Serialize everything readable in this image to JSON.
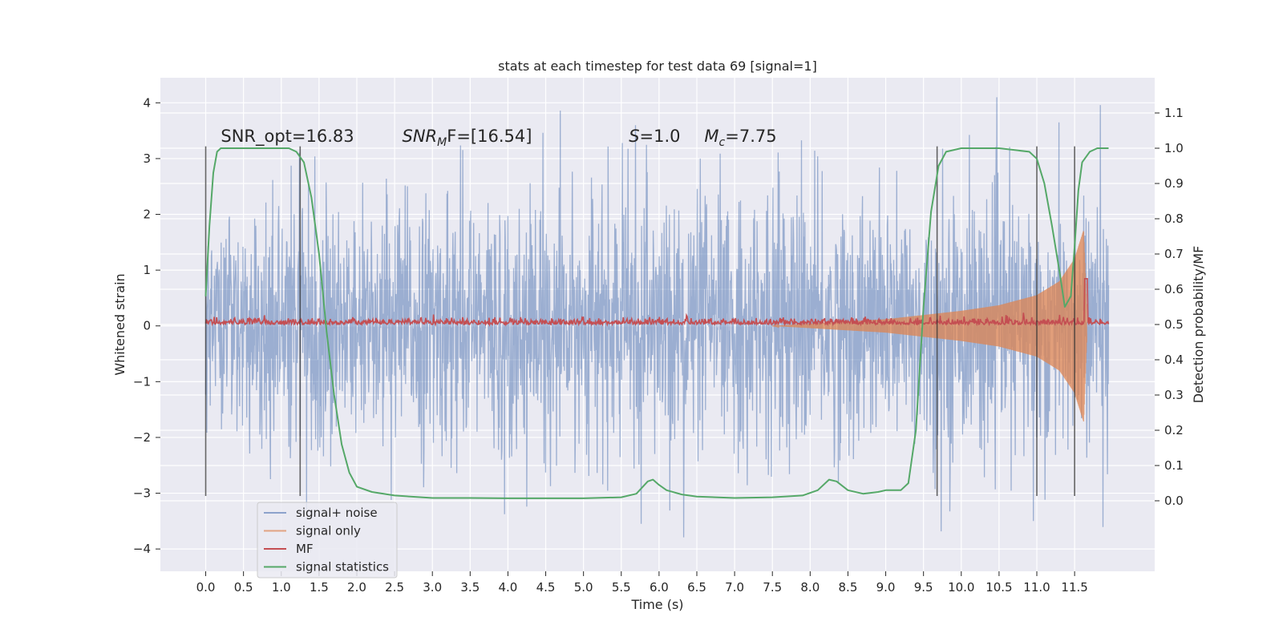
{
  "chart_data": {
    "type": "line",
    "title": "stats at each timestep for test data 69 [signal=1]",
    "xlabel": "Time (s)",
    "ylabel": "Whitened strain",
    "ylabel_right": "Detection probability/MF",
    "xlim": [
      -0.6,
      12.56
    ],
    "ylim": [
      -4.4,
      4.45
    ],
    "ylim_right": [
      -0.2,
      1.2
    ],
    "x_ticks": [
      "0.0",
      "0.5",
      "1.0",
      "1.5",
      "2.0",
      "2.5",
      "3.0",
      "3.5",
      "4.0",
      "4.5",
      "5.0",
      "5.5",
      "6.0",
      "6.5",
      "7.0",
      "7.5",
      "8.0",
      "8.5",
      "9.0",
      "9.5",
      "10.0",
      "10.5",
      "11.0",
      "11.5"
    ],
    "y_ticks": [
      "4",
      "3",
      "2",
      "1",
      "0",
      "−1",
      "−2",
      "−3",
      "−4"
    ],
    "y_ticks_right": [
      "1.1",
      "1.0",
      "0.9",
      "0.8",
      "0.7",
      "0.6",
      "0.5",
      "0.4",
      "0.3",
      "0.2",
      "0.1",
      "0.0"
    ],
    "grid": true,
    "legend_position": "lower-left",
    "annotations": [
      {
        "text": "SNR_opt=16.83",
        "x": 0.2,
        "y": 3.3
      },
      {
        "text": "SNR",
        "sub": "M",
        "rest": "F=[16.54]",
        "x": 2.6,
        "y": 3.3
      },
      {
        "text": "S",
        "rest": "=1.0",
        "x": 5.6,
        "y": 3.3
      },
      {
        "text": "M",
        "sub": "c",
        "rest": "=7.75",
        "x": 6.6,
        "y": 3.3
      }
    ],
    "vlines": [
      {
        "x": 0.0,
        "ymin": -3.05,
        "ymax": 3.22
      },
      {
        "x": 1.25,
        "ymin": -3.05,
        "ymax": 3.22
      },
      {
        "x": 9.68,
        "ymin": -3.05,
        "ymax": 3.22
      },
      {
        "x": 11.0,
        "ymin": -3.05,
        "ymax": 3.22
      },
      {
        "x": 11.5,
        "ymin": -3.05,
        "ymax": 3.22
      }
    ],
    "series": [
      {
        "name": "signal+ noise",
        "color": "#4c72b0",
        "kind": "noise",
        "x_range": [
          0.0,
          11.95
        ],
        "typical_abs": 1.3,
        "extreme_range": [
          -3.9,
          4.1
        ]
      },
      {
        "name": "signal only",
        "color": "#dd8452",
        "kind": "chirp",
        "envelope": [
          [
            7.5,
            0.0
          ],
          [
            8.0,
            0.04
          ],
          [
            9.0,
            0.12
          ],
          [
            10.0,
            0.27
          ],
          [
            10.5,
            0.37
          ],
          [
            11.0,
            0.55
          ],
          [
            11.3,
            0.8
          ],
          [
            11.5,
            1.2
          ],
          [
            11.62,
            1.72
          ],
          [
            11.66,
            0.3
          ]
        ]
      },
      {
        "name": "MF",
        "color": "#c44e52",
        "kind": "mf",
        "x_range": [
          0.0,
          11.95
        ],
        "base": 0.5,
        "peak": [
          11.65,
          0.63
        ]
      },
      {
        "name": "signal statistics",
        "color": "#55a868",
        "kind": "curve",
        "points": [
          [
            0.0,
            0.58
          ],
          [
            0.05,
            0.78
          ],
          [
            0.1,
            0.93
          ],
          [
            0.15,
            0.99
          ],
          [
            0.2,
            1.0
          ],
          [
            0.4,
            1.0
          ],
          [
            0.6,
            1.0
          ],
          [
            0.8,
            1.0
          ],
          [
            1.0,
            1.0
          ],
          [
            1.1,
            1.0
          ],
          [
            1.2,
            0.99
          ],
          [
            1.3,
            0.96
          ],
          [
            1.4,
            0.86
          ],
          [
            1.5,
            0.7
          ],
          [
            1.6,
            0.48
          ],
          [
            1.7,
            0.3
          ],
          [
            1.8,
            0.16
          ],
          [
            1.9,
            0.08
          ],
          [
            2.0,
            0.04
          ],
          [
            2.2,
            0.025
          ],
          [
            2.5,
            0.015
          ],
          [
            3.0,
            0.008
          ],
          [
            3.5,
            0.008
          ],
          [
            4.0,
            0.007
          ],
          [
            4.5,
            0.007
          ],
          [
            5.0,
            0.007
          ],
          [
            5.5,
            0.01
          ],
          [
            5.7,
            0.02
          ],
          [
            5.85,
            0.055
          ],
          [
            5.92,
            0.06
          ],
          [
            6.0,
            0.045
          ],
          [
            6.1,
            0.03
          ],
          [
            6.3,
            0.018
          ],
          [
            6.5,
            0.012
          ],
          [
            7.0,
            0.008
          ],
          [
            7.5,
            0.01
          ],
          [
            7.9,
            0.015
          ],
          [
            8.1,
            0.03
          ],
          [
            8.25,
            0.06
          ],
          [
            8.35,
            0.055
          ],
          [
            8.5,
            0.03
          ],
          [
            8.7,
            0.02
          ],
          [
            8.9,
            0.025
          ],
          [
            9.0,
            0.03
          ],
          [
            9.2,
            0.03
          ],
          [
            9.3,
            0.05
          ],
          [
            9.4,
            0.2
          ],
          [
            9.5,
            0.55
          ],
          [
            9.6,
            0.82
          ],
          [
            9.7,
            0.95
          ],
          [
            9.8,
            0.99
          ],
          [
            10.0,
            1.0
          ],
          [
            10.5,
            1.0
          ],
          [
            10.9,
            0.99
          ],
          [
            11.0,
            0.97
          ],
          [
            11.1,
            0.9
          ],
          [
            11.2,
            0.78
          ],
          [
            11.3,
            0.65
          ],
          [
            11.37,
            0.55
          ],
          [
            11.45,
            0.58
          ],
          [
            11.5,
            0.72
          ],
          [
            11.55,
            0.88
          ],
          [
            11.6,
            0.96
          ],
          [
            11.7,
            0.99
          ],
          [
            11.8,
            1.0
          ],
          [
            11.95,
            1.0
          ]
        ]
      }
    ]
  }
}
